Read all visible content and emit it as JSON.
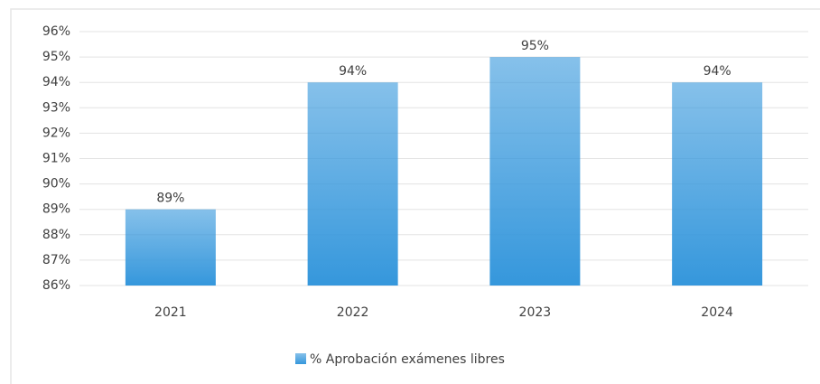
{
  "chart_data": {
    "type": "bar",
    "categories": [
      "2021",
      "2022",
      "2023",
      "2024"
    ],
    "series": [
      {
        "name": "% Aprobación exámenes libres",
        "color": "#3597dc",
        "values": [
          89,
          94,
          95,
          94
        ],
        "value_labels": [
          "89%",
          "94%",
          "95%",
          "94%"
        ]
      }
    ],
    "ylim": [
      86,
      96
    ],
    "yticks": [
      {
        "value": 86,
        "label": "86%"
      },
      {
        "value": 87,
        "label": "87%"
      },
      {
        "value": 88,
        "label": "88%"
      },
      {
        "value": 89,
        "label": "89%"
      },
      {
        "value": 90,
        "label": "90%"
      },
      {
        "value": 91,
        "label": "91%"
      },
      {
        "value": 92,
        "label": "92%"
      },
      {
        "value": 93,
        "label": "93%"
      },
      {
        "value": 94,
        "label": "94%"
      },
      {
        "value": 95,
        "label": "95%"
      },
      {
        "value": 96,
        "label": "96%"
      }
    ],
    "grid": true,
    "legend": "bottom"
  }
}
